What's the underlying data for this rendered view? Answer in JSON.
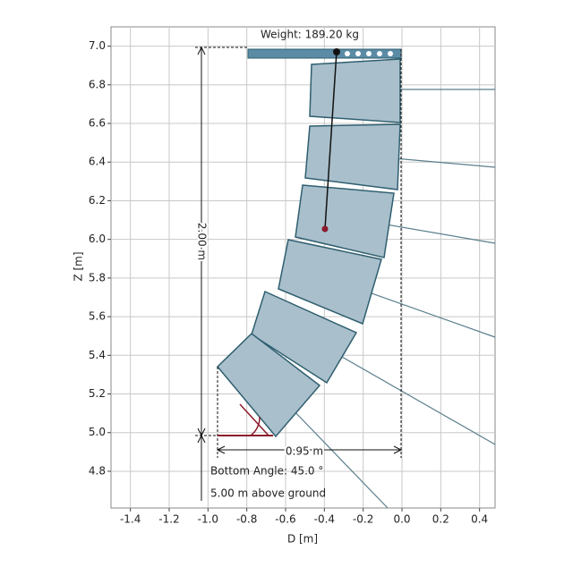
{
  "chart_data": {
    "type": "line-array",
    "x_label": "D [m]",
    "y_label": "Z [m]",
    "xlim": [
      -1.5,
      0.48
    ],
    "ylim": [
      4.61,
      7.1
    ],
    "xticks": [
      -1.4,
      -1.2,
      {
        "value": -1.0,
        "label": "-1.0"
      },
      -0.8,
      -0.6,
      -0.4,
      -0.2,
      {
        "value": 0.0,
        "label": "0.0"
      },
      0.2,
      0.4
    ],
    "yticks": [
      {
        "value": 4.8,
        "label": "4.8"
      },
      {
        "value": 5.0,
        "label": "5.0"
      },
      {
        "value": 5.2,
        "label": "5.2"
      },
      {
        "value": 5.4,
        "label": "5.4"
      },
      {
        "value": 5.6,
        "label": "5.6"
      },
      {
        "value": 5.8,
        "label": "5.8"
      },
      {
        "value": 6.0,
        "label": "6.0"
      },
      {
        "value": 6.2,
        "label": "6.2"
      },
      {
        "value": 6.4,
        "label": "6.4"
      },
      {
        "value": 6.6,
        "label": "6.6"
      },
      {
        "value": 6.8,
        "label": "6.8"
      },
      {
        "value": 7.0,
        "label": "7.0"
      }
    ],
    "grid": true,
    "annotations": {
      "weight": "Weight: 189.20 kg",
      "height": "2.00 m",
      "width": "0.95 m",
      "angle": "Bottom Angle: 45.0 °",
      "ground": "5.00 m above ground"
    }
  }
}
